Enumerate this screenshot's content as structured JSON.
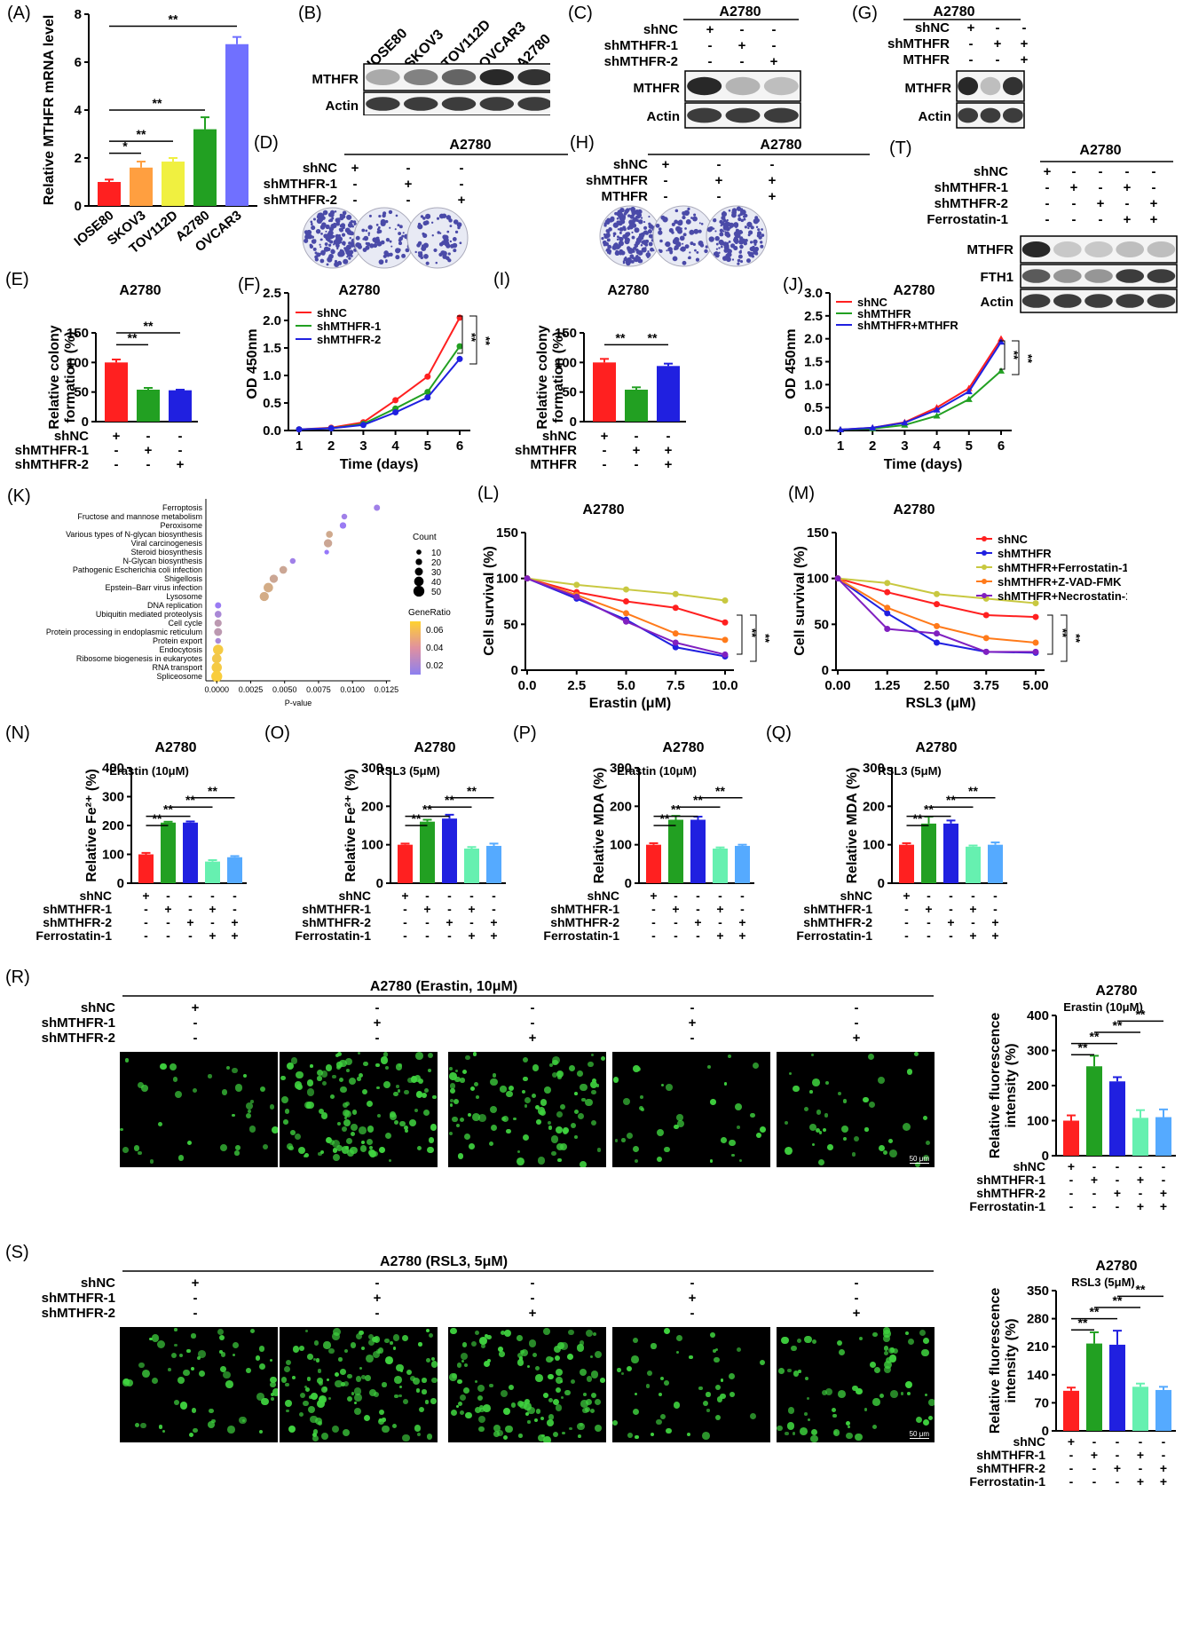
{
  "colors": {
    "red": "#ff2020",
    "orange": "#ff9f40",
    "yellow": "#f0f040",
    "green": "#22a022",
    "violet": "#7070ff",
    "blue": "#2020e0",
    "mint": "#66f0b0",
    "lblue": "#55aaff",
    "olive": "#c8c840",
    "orange2": "#ff7a1a",
    "purple": "#8020c0"
  },
  "panels": {
    "A": {
      "label": "(A)",
      "ylabel": "Relative MTHFR mRNA level",
      "categories": [
        "IOSE80",
        "SKOV3",
        "TOV112D",
        "A2780",
        "OVCAR3"
      ],
      "values": [
        1.0,
        1.6,
        1.85,
        3.2,
        6.75
      ],
      "errors": [
        0.1,
        0.25,
        0.15,
        0.5,
        0.3
      ],
      "ylim": [
        0,
        8
      ],
      "yticks": [
        "0",
        "2",
        "4",
        "6",
        "8"
      ],
      "sig": [
        "*",
        "**",
        "**",
        "**"
      ]
    },
    "B": {
      "label": "(B)",
      "lanes": [
        "IOSE80",
        "SKOV3",
        "TOV112D",
        "OVCAR3",
        "A2780"
      ],
      "rows": [
        "MTHFR",
        "Actin"
      ]
    },
    "C": {
      "label": "(C)",
      "cell": "A2780",
      "groups": [
        "shNC",
        "shMTHFR-1",
        "shMTHFR-2"
      ],
      "signs": [
        [
          "+",
          "-",
          "-"
        ],
        [
          "-",
          "+",
          "-"
        ],
        [
          "-",
          "-",
          "+"
        ]
      ],
      "rows": [
        "MTHFR",
        "Actin"
      ]
    },
    "G": {
      "label": "(G)",
      "cell": "A2780",
      "groups": [
        "shNC",
        "shMTHFR",
        "MTHFR"
      ],
      "signs": [
        [
          "+",
          "-",
          "-"
        ],
        [
          "-",
          "+",
          "+"
        ],
        [
          "-",
          "-",
          "+"
        ]
      ],
      "rows": [
        "MTHFR",
        "Actin"
      ]
    },
    "D": {
      "label": "(D)",
      "cell": "A2780",
      "groups": [
        "shNC",
        "shMTHFR-1",
        "shMTHFR-2"
      ],
      "signs": [
        [
          "+",
          "-",
          "-"
        ],
        [
          "-",
          "+",
          "-"
        ],
        [
          "-",
          "-",
          "+"
        ]
      ]
    },
    "H": {
      "label": "(H)",
      "cell": "A2780",
      "groups": [
        "shNC",
        "shMTHFR",
        "MTHFR"
      ],
      "signs": [
        [
          "+",
          "-",
          "-"
        ],
        [
          "-",
          "+",
          "+"
        ],
        [
          "-",
          "-",
          "+"
        ]
      ]
    },
    "T": {
      "label": "(T)",
      "cell": "A2780",
      "groups": [
        "shNC",
        "shMTHFR-1",
        "shMTHFR-2",
        "Ferrostatin-1"
      ],
      "signs": [
        [
          "+",
          "-",
          "-",
          "-",
          "-"
        ],
        [
          "-",
          "+",
          "-",
          "+",
          "-"
        ],
        [
          "-",
          "-",
          "+",
          "-",
          "+"
        ],
        [
          "-",
          "-",
          "-",
          "+",
          "+"
        ]
      ],
      "rows": [
        "MTHFR",
        "FTH1",
        "Actin"
      ]
    },
    "E": {
      "label": "(E)",
      "title": "A2780",
      "ylabel": "Relative colony formation (%)",
      "values": [
        100,
        54,
        53
      ],
      "errors": [
        5,
        3,
        1
      ],
      "ylim": [
        0,
        150
      ],
      "yticks": [
        "0",
        "50",
        "100",
        "150"
      ],
      "groups": [
        "shNC",
        "shMTHFR-1",
        "shMTHFR-2"
      ],
      "signs": [
        [
          "+",
          "-",
          "-"
        ],
        [
          "-",
          "+",
          "-"
        ],
        [
          "-",
          "-",
          "+"
        ]
      ],
      "sig": [
        "**",
        "**"
      ]
    },
    "F": {
      "label": "(F)",
      "title": "A2780",
      "ylabel": "OD 450nm",
      "xlabel": "Time (days)",
      "x": [
        1,
        2,
        3,
        4,
        5,
        6
      ],
      "xticks": [
        "1",
        "2",
        "3",
        "4",
        "5",
        "6"
      ],
      "ylim": [
        0,
        2.5
      ],
      "yticks": [
        "0.0",
        "0.5",
        "1.0",
        "1.5",
        "2.0",
        "2.5"
      ],
      "series": [
        {
          "name": "shNC",
          "values": [
            0.02,
            0.05,
            0.15,
            0.55,
            0.98,
            2.05
          ]
        },
        {
          "name": "shMTHFR-1",
          "values": [
            0.02,
            0.04,
            0.12,
            0.4,
            0.7,
            1.53
          ]
        },
        {
          "name": "shMTHFR-2",
          "values": [
            0.02,
            0.04,
            0.1,
            0.33,
            0.6,
            1.3
          ]
        }
      ],
      "sig": [
        "**",
        "**"
      ]
    },
    "I": {
      "label": "(I)",
      "title": "A2780",
      "ylabel": "Relative colony formation (%)",
      "values": [
        100,
        54,
        94
      ],
      "errors": [
        6,
        4,
        4
      ],
      "ylim": [
        0,
        150
      ],
      "yticks": [
        "0",
        "50",
        "100",
        "150"
      ],
      "groups": [
        "shNC",
        "shMTHFR",
        "MTHFR"
      ],
      "signs": [
        [
          "+",
          "-",
          "-"
        ],
        [
          "-",
          "+",
          "+"
        ],
        [
          "-",
          "-",
          "+"
        ]
      ],
      "sig": [
        "**",
        "**"
      ]
    },
    "J": {
      "label": "(J)",
      "title": "A2780",
      "ylabel": "OD 450nm",
      "xlabel": "Time (days)",
      "x": [
        1,
        2,
        3,
        4,
        5,
        6
      ],
      "xticks": [
        "1",
        "2",
        "3",
        "4",
        "5",
        "6"
      ],
      "ylim": [
        0,
        3.0
      ],
      "yticks": [
        "0.0",
        "0.5",
        "1.0",
        "1.5",
        "2.0",
        "2.5",
        "3.0"
      ],
      "series": [
        {
          "name": "shNC",
          "values": [
            0.02,
            0.06,
            0.18,
            0.5,
            0.92,
            2.0
          ]
        },
        {
          "name": "shMTHFR",
          "values": [
            0.02,
            0.04,
            0.12,
            0.32,
            0.68,
            1.3
          ]
        },
        {
          "name": "shMTHFR+MTHFR",
          "values": [
            0.02,
            0.06,
            0.17,
            0.45,
            0.85,
            1.93
          ]
        }
      ],
      "sig": [
        "**",
        "**"
      ]
    },
    "K": {
      "label": "(K)",
      "xlabel": "P-value",
      "xticks": [
        "0.0000",
        "0.0025",
        "0.0050",
        "0.0075",
        "0.0100",
        "0.0125"
      ],
      "xlim": [
        -0.0008,
        0.0128
      ],
      "terms": [
        "Ferroptosis",
        "Fructose and mannose metabolism",
        "Peroxisome",
        "Various types of N-glycan biosynthesis",
        "Viral carcinogenesis",
        "Steroid biosynthesis",
        "N-Glycan biosynthesis",
        "Pathogenic Escherichia coli infection",
        "Shigellosis",
        "Epstein–Barr virus infection",
        "Lysosome",
        "DNA replication",
        "Ubiquitin mediated proteolysis",
        "Cell cycle",
        "Protein processing in endoplasmic reticulum",
        "Protein export",
        "Endocytosis",
        "Ribosome biogenesis in eukaryotes",
        "RNA transport",
        "Spliceosome"
      ],
      "pvalues": [
        0.0118,
        0.0094,
        0.0093,
        0.0083,
        0.0082,
        0.0081,
        0.0056,
        0.0049,
        0.0042,
        0.0038,
        0.0035,
        0.0001,
        0.0001,
        0.0001,
        0.0001,
        0.0001,
        0.0001,
        0.0,
        0.0,
        0.0
      ],
      "counts": [
        18,
        15,
        20,
        22,
        32,
        8,
        15,
        28,
        32,
        40,
        38,
        18,
        22,
        25,
        30,
        15,
        45,
        40,
        45,
        50
      ],
      "ratios": [
        0.025,
        0.025,
        0.022,
        0.05,
        0.048,
        0.02,
        0.025,
        0.048,
        0.048,
        0.052,
        0.052,
        0.022,
        0.03,
        0.04,
        0.04,
        0.03,
        0.07,
        0.068,
        0.07,
        0.072
      ],
      "legend_count_title": "Count",
      "legend_counts": [
        "10",
        "20",
        "30",
        "40",
        "50"
      ],
      "legend_ratio_title": "GeneRatio",
      "legend_ratio_ticks": [
        "0.06",
        "0.04",
        "0.02"
      ]
    },
    "L": {
      "label": "(L)",
      "title": "A2780",
      "ylabel": "Cell survival (%)",
      "xlabel": "Erastin (μM)",
      "x": [
        0,
        2.5,
        5,
        7.5,
        10
      ],
      "xticks": [
        "0.0",
        "2.5",
        "5.0",
        "7.5",
        "10.0"
      ],
      "ylim": [
        0,
        150
      ],
      "yticks": [
        "0",
        "50",
        "100",
        "150"
      ],
      "series": [
        {
          "name": "shNC",
          "values": [
            100,
            85,
            75,
            68,
            52
          ]
        },
        {
          "name": "shMTHFR",
          "values": [
            100,
            78,
            55,
            25,
            15
          ]
        },
        {
          "name": "shMTHFR+Ferrostatin-1",
          "values": [
            100,
            93,
            88,
            83,
            76
          ]
        },
        {
          "name": "shMTHFR+Z-VAD-FMK",
          "values": [
            100,
            82,
            62,
            40,
            33
          ]
        },
        {
          "name": "shMTHFR+Necrostatin-1",
          "values": [
            100,
            80,
            53,
            30,
            17
          ]
        }
      ],
      "sig": [
        "**",
        "**"
      ]
    },
    "M": {
      "label": "(M)",
      "title": "A2780",
      "ylabel": "Cell survival (%)",
      "xlabel": "RSL3 (μM)",
      "x": [
        0,
        1.25,
        2.5,
        3.75,
        5
      ],
      "xticks": [
        "0.00",
        "1.25",
        "2.50",
        "3.75",
        "5.00"
      ],
      "ylim": [
        0,
        150
      ],
      "yticks": [
        "0",
        "50",
        "100",
        "150"
      ],
      "series": [
        {
          "name": "shNC",
          "values": [
            100,
            85,
            72,
            60,
            58
          ]
        },
        {
          "name": "shMTHFR",
          "values": [
            100,
            62,
            30,
            20,
            19
          ]
        },
        {
          "name": "shMTHFR+Ferrostatin-1",
          "values": [
            100,
            95,
            83,
            78,
            73
          ]
        },
        {
          "name": "shMTHFR+Z-VAD-FMK",
          "values": [
            100,
            68,
            48,
            35,
            30
          ]
        },
        {
          "name": "shMTHFR+Necrostatin-1",
          "values": [
            100,
            45,
            40,
            20,
            20
          ]
        }
      ],
      "sig": [
        "**",
        "**"
      ]
    },
    "N": {
      "label": "(N)",
      "title": "A2780",
      "subtitle": "Erastin (10μM)",
      "ylabel": "Relative Fe²⁺ (%)",
      "values": [
        100,
        210,
        210,
        75,
        90
      ],
      "errors": [
        5,
        3,
        4,
        5,
        4
      ],
      "ylim": [
        0,
        400
      ],
      "yticks": [
        "0",
        "100",
        "200",
        "300",
        "400"
      ]
    },
    "O": {
      "label": "(O)",
      "title": "A2780",
      "subtitle": "RSL3 (5μM)",
      "ylabel": "Relative Fe²⁺ (%)",
      "values": [
        100,
        160,
        168,
        90,
        97
      ],
      "errors": [
        3,
        5,
        10,
        4,
        6
      ],
      "ylim": [
        0,
        300
      ],
      "yticks": [
        "0",
        "100",
        "200",
        "300"
      ]
    },
    "P": {
      "label": "(P)",
      "title": "A2780",
      "subtitle": "Erastin (10μM)",
      "ylabel": "Relative MDA (%)",
      "values": [
        100,
        165,
        165,
        90,
        97
      ],
      "errors": [
        4,
        10,
        8,
        3,
        3
      ],
      "ylim": [
        0,
        300
      ],
      "yticks": [
        "0",
        "100",
        "200",
        "300"
      ]
    },
    "Q": {
      "label": "(Q)",
      "title": "A2780",
      "subtitle": "RSL3 (5μM)",
      "ylabel": "Relative MDA (%)",
      "values": [
        100,
        155,
        155,
        95,
        100
      ],
      "errors": [
        4,
        18,
        8,
        3,
        6
      ],
      "ylim": [
        0,
        300
      ],
      "yticks": [
        "0",
        "100",
        "200",
        "300"
      ]
    },
    "R": {
      "label": "(R)",
      "header": "A2780 (Erastin, 10μM)",
      "chart_title": "A2780",
      "chart_subtitle": "Erastin (10μM)",
      "ylabel": "Relative fluorescence intensity (%)",
      "values": [
        100,
        255,
        212,
        108,
        110
      ],
      "errors": [
        15,
        30,
        12,
        22,
        22
      ],
      "ylim": [
        0,
        400
      ],
      "yticks": [
        "0",
        "100",
        "200",
        "300",
        "400"
      ],
      "scalebar": "50 μm"
    },
    "S": {
      "label": "(S)",
      "header": "A2780 (RSL3, 5μM)",
      "chart_title": "A2780",
      "chart_subtitle": "RSL3 (5μM)",
      "ylabel": "Relative fluorescence intensity (%)",
      "values": [
        100,
        218,
        215,
        110,
        102
      ],
      "errors": [
        8,
        28,
        35,
        8,
        8
      ],
      "ylim": [
        0,
        350
      ],
      "yticks": [
        "0",
        "70",
        "140",
        "210",
        "280",
        "350"
      ],
      "scalebar": "50 μm"
    },
    "four_group": {
      "groups": [
        "shNC",
        "shMTHFR-1",
        "shMTHFR-2",
        "Ferrostatin-1"
      ],
      "signs": [
        [
          "+",
          "-",
          "-",
          "-",
          "-"
        ],
        [
          "-",
          "+",
          "-",
          "+",
          "-"
        ],
        [
          "-",
          "-",
          "+",
          "-",
          "+"
        ],
        [
          "-",
          "-",
          "-",
          "+",
          "+"
        ]
      ]
    },
    "significance": "**"
  }
}
